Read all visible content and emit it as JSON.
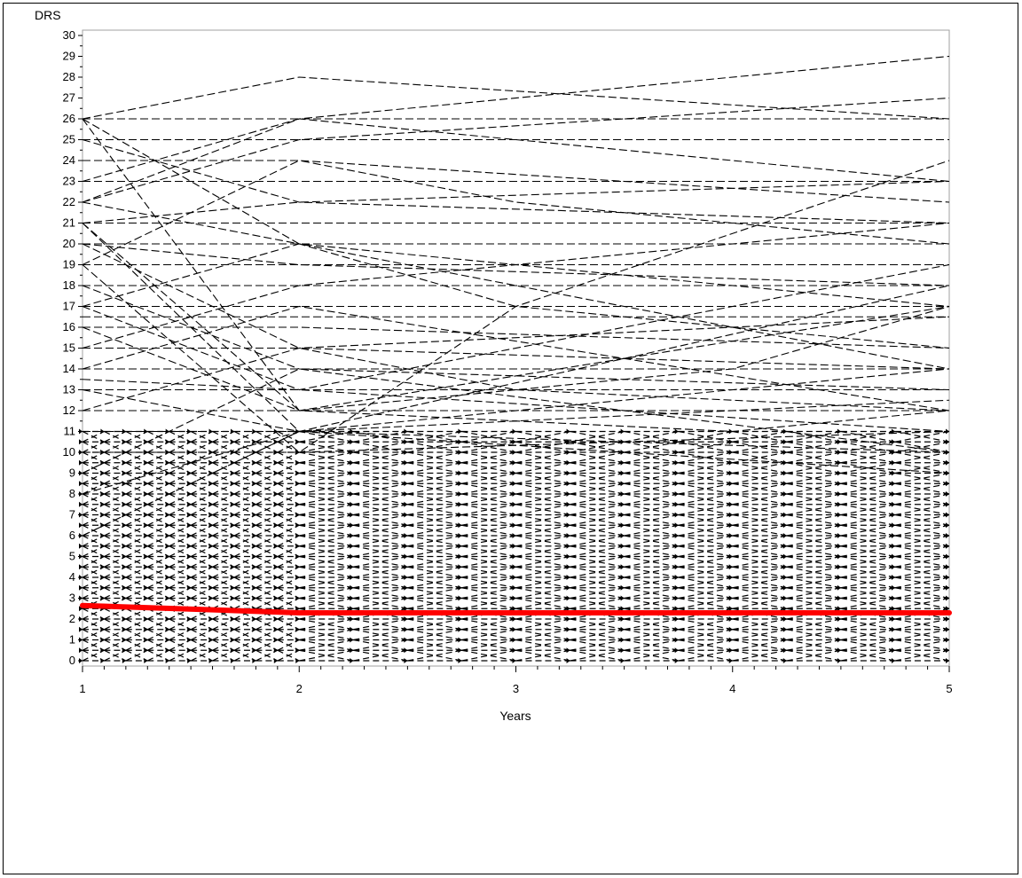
{
  "chart_data": {
    "type": "line",
    "xlabel": "Years",
    "ylabel": "DRS",
    "xlim": [
      1,
      5
    ],
    "ylim": [
      0,
      30
    ],
    "x_ticks": [
      1,
      2,
      3,
      4,
      5
    ],
    "y_ticks": [
      0,
      1,
      2,
      3,
      4,
      5,
      6,
      7,
      8,
      9,
      10,
      11,
      12,
      13,
      14,
      15,
      16,
      17,
      18,
      19,
      20,
      21,
      22,
      23,
      24,
      25,
      26,
      27,
      28,
      29,
      30
    ],
    "individual_line_color": "#000000",
    "individual_line_style": "dashed",
    "individual_trajectories": [
      {
        "x": [
          1,
          2,
          5
        ],
        "y": [
          26,
          28,
          26
        ]
      },
      {
        "x": [
          1,
          5
        ],
        "y": [
          26,
          26
        ]
      },
      {
        "x": [
          1,
          2,
          5
        ],
        "y": [
          26,
          20,
          14
        ]
      },
      {
        "x": [
          1,
          2,
          4,
          5
        ],
        "y": [
          26,
          12,
          11,
          12
        ]
      },
      {
        "x": [
          1,
          2,
          5
        ],
        "y": [
          25,
          25,
          25
        ]
      },
      {
        "x": [
          1,
          2,
          5
        ],
        "y": [
          25,
          22,
          21
        ]
      },
      {
        "x": [
          1,
          2,
          3,
          5
        ],
        "y": [
          24,
          24,
          22,
          20
        ]
      },
      {
        "x": [
          1,
          2,
          5
        ],
        "y": [
          23,
          23,
          23
        ]
      },
      {
        "x": [
          1,
          2,
          5
        ],
        "y": [
          23,
          26,
          29
        ]
      },
      {
        "x": [
          1,
          2,
          5
        ],
        "y": [
          22,
          26,
          23
        ]
      },
      {
        "x": [
          1,
          2,
          5
        ],
        "y": [
          22,
          25,
          27
        ]
      },
      {
        "x": [
          1,
          2,
          3,
          5
        ],
        "y": [
          22,
          20,
          17,
          15
        ]
      },
      {
        "x": [
          1,
          2,
          5
        ],
        "y": [
          21,
          21,
          21
        ]
      },
      {
        "x": [
          1,
          2,
          5
        ],
        "y": [
          21,
          22,
          23
        ]
      },
      {
        "x": [
          1,
          2,
          4,
          5
        ],
        "y": [
          21,
          12,
          14,
          17
        ]
      },
      {
        "x": [
          1,
          2,
          5
        ],
        "y": [
          21,
          11,
          10
        ]
      },
      {
        "x": [
          1,
          2,
          5
        ],
        "y": [
          20,
          20,
          20
        ]
      },
      {
        "x": [
          1,
          2,
          5
        ],
        "y": [
          20,
          19,
          18
        ]
      },
      {
        "x": [
          1,
          2,
          3,
          5
        ],
        "y": [
          20,
          15,
          13,
          12
        ]
      },
      {
        "x": [
          1,
          2,
          5
        ],
        "y": [
          19,
          19,
          19
        ]
      },
      {
        "x": [
          1,
          2,
          5
        ],
        "y": [
          19,
          24,
          22
        ]
      },
      {
        "x": [
          1,
          2,
          5
        ],
        "y": [
          19,
          10,
          11
        ]
      },
      {
        "x": [
          1,
          2,
          5
        ],
        "y": [
          18,
          18,
          18
        ]
      },
      {
        "x": [
          1,
          2,
          5
        ],
        "y": [
          18,
          14,
          13
        ]
      },
      {
        "x": [
          1,
          2,
          5
        ],
        "y": [
          17,
          17,
          17
        ]
      },
      {
        "x": [
          1,
          2,
          5
        ],
        "y": [
          17,
          20,
          17
        ]
      },
      {
        "x": [
          1,
          2,
          5
        ],
        "y": [
          17,
          13,
          19
        ]
      },
      {
        "x": [
          1,
          2,
          5
        ],
        "y": [
          16.5,
          16.5,
          16.5
        ]
      },
      {
        "x": [
          1,
          2,
          5
        ],
        "y": [
          16,
          16,
          15
        ]
      },
      {
        "x": [
          1,
          2,
          5
        ],
        "y": [
          16,
          12,
          17
        ]
      },
      {
        "x": [
          1,
          2,
          5
        ],
        "y": [
          15,
          15,
          14
        ]
      },
      {
        "x": [
          1,
          2,
          5
        ],
        "y": [
          15,
          18,
          21
        ]
      },
      {
        "x": [
          1,
          2,
          5
        ],
        "y": [
          14,
          14,
          14
        ]
      },
      {
        "x": [
          1,
          2,
          5
        ],
        "y": [
          14,
          17,
          12
        ]
      },
      {
        "x": [
          1,
          2,
          5
        ],
        "y": [
          13.5,
          13,
          13
        ]
      },
      {
        "x": [
          1,
          2,
          5
        ],
        "y": [
          13,
          13,
          11
        ]
      },
      {
        "x": [
          1,
          2,
          5
        ],
        "y": [
          13,
          11,
          18
        ]
      },
      {
        "x": [
          1,
          2,
          5
        ],
        "y": [
          12,
          12,
          12
        ]
      },
      {
        "x": [
          1,
          2,
          5
        ],
        "y": [
          12,
          15,
          16.5
        ]
      },
      {
        "x": [
          1,
          2,
          5
        ],
        "y": [
          11,
          11,
          12.5
        ]
      },
      {
        "x": [
          1,
          2,
          3,
          5
        ],
        "y": [
          10,
          10,
          17,
          24
        ]
      },
      {
        "x": [
          1,
          2,
          5
        ],
        "y": [
          9,
          14,
          10
        ]
      },
      {
        "x": [
          1,
          2,
          5
        ],
        "y": [
          8,
          11,
          14
        ]
      },
      {
        "x": [
          1,
          2,
          5
        ],
        "y": [
          6,
          11,
          9
        ]
      }
    ],
    "dense_band": {
      "y_range": [
        0,
        11
      ],
      "columns": [
        1.0,
        1.1,
        1.2,
        1.3,
        1.4,
        1.5,
        1.6,
        1.7,
        1.8,
        1.9,
        2.0,
        2.25,
        2.5,
        2.75,
        3.0,
        3.25,
        3.5,
        3.75,
        4.0,
        4.25,
        4.5,
        4.75,
        5.0
      ]
    },
    "mean_trend": {
      "color": "#ff0000",
      "x": [
        1,
        2,
        3,
        4,
        5
      ],
      "y": [
        2.65,
        2.3,
        2.3,
        2.3,
        2.3
      ]
    }
  }
}
